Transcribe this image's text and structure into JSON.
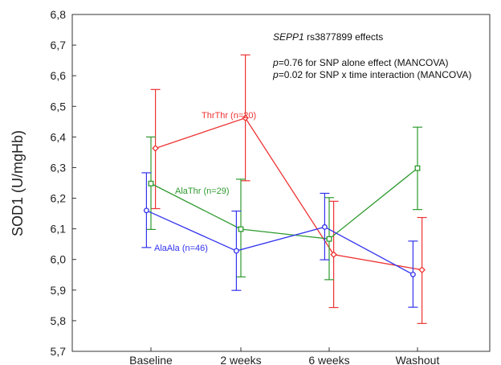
{
  "chart_data": {
    "type": "line",
    "title": "",
    "xlabel": "",
    "ylabel": "SOD1 (U/mgHb)",
    "ylim": [
      5.7,
      6.8
    ],
    "ytick_step": 0.1,
    "grid": false,
    "categories": [
      "Baseline",
      "2 weeks",
      "6 weeks",
      "Washout"
    ],
    "annotations": {
      "effect_gene": "SEPP1",
      "effect_rest": " rs3877899 effects",
      "line1_p": "p",
      "line1_rest": "=0.76 for SNP alone effect (MANCOVA)",
      "line2_p": "p",
      "line2_rest": "=0.02 for SNP x time interaction (MANCOVA)"
    },
    "series": [
      {
        "name": "ThrThr (n=20)",
        "color": "#ee3333",
        "marker": "diamond",
        "x_offset": 0.2,
        "values": [
          6.363,
          6.462,
          6.016,
          5.966
        ],
        "err_low": [
          6.166,
          6.257,
          5.843,
          5.791
        ],
        "err_high": [
          6.555,
          6.668,
          6.19,
          6.137
        ]
      },
      {
        "name": "AlaThr (n=29)",
        "color": "#2e9a2e",
        "marker": "square",
        "x_offset": 0.0,
        "values": [
          6.248,
          6.099,
          6.067,
          6.298
        ],
        "err_low": [
          6.098,
          5.943,
          5.934,
          6.163
        ],
        "err_high": [
          6.4,
          6.262,
          6.202,
          6.432
        ]
      },
      {
        "name": "AlaAla (n=46)",
        "color": "#3333ee",
        "marker": "circle",
        "x_offset": -0.2,
        "values": [
          6.16,
          6.028,
          6.106,
          5.951
        ],
        "err_low": [
          6.039,
          5.899,
          5.999,
          5.844
        ],
        "err_high": [
          6.283,
          6.158,
          6.216,
          6.06
        ]
      }
    ]
  }
}
